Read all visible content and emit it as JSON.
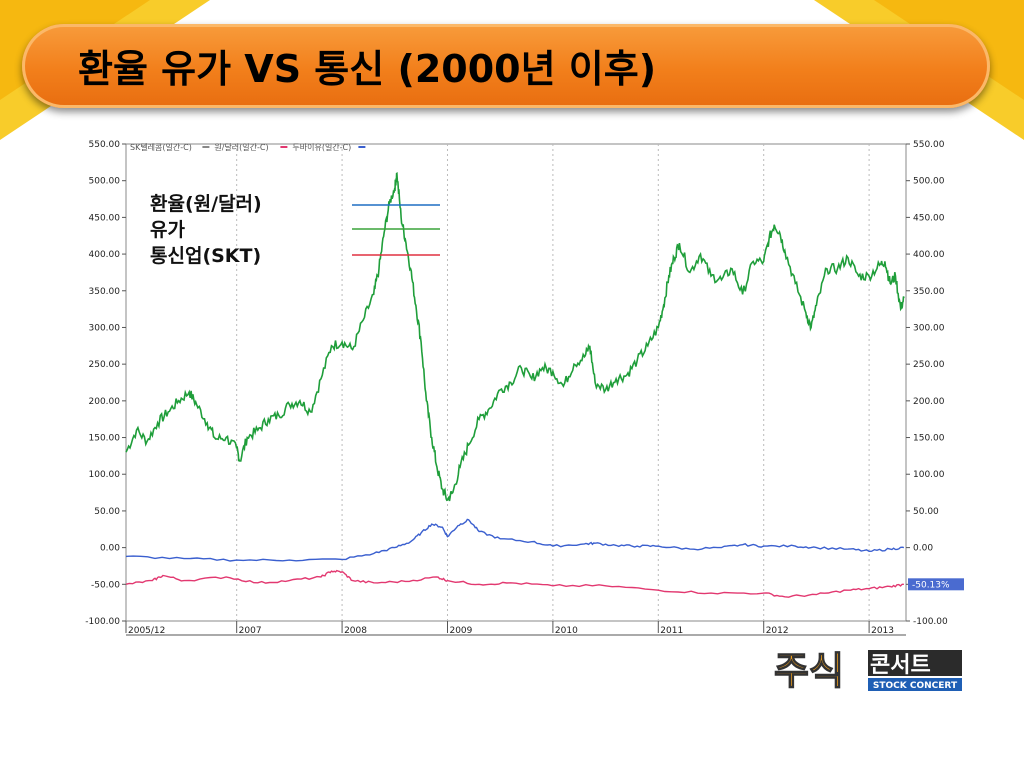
{
  "slide": {
    "title": "환율 유가 VS 통신 (2000년 이후)"
  },
  "chart_data": {
    "type": "line",
    "header_legend": [
      "SK텔레콤(일간-C)",
      "원/달러(일간-C)",
      "두바이유(일간-C)"
    ],
    "legend": [
      {
        "label": "환율(원/달러)",
        "color": "#1f6fc4"
      },
      {
        "label": "유가",
        "color": "#3aa43a"
      },
      {
        "label": "통신업(SKT)",
        "color": "#e03040"
      }
    ],
    "y_ticks": [
      "550.00",
      "500.00",
      "450.00",
      "400.00",
      "350.00",
      "300.00",
      "250.00",
      "200.00",
      "150.00",
      "100.00",
      "50.00",
      "0.00",
      "-50.00",
      "-100.00"
    ],
    "x_ticks": [
      {
        "label": "2005/12",
        "x": 2005.95
      },
      {
        "label": "2007",
        "x": 2007.0
      },
      {
        "label": "2008",
        "x": 2008.0
      },
      {
        "label": "2009",
        "x": 2009.0
      },
      {
        "label": "2010",
        "x": 2010.0
      },
      {
        "label": "2011",
        "x": 2011.0
      },
      {
        "label": "2012",
        "x": 2012.0
      },
      {
        "label": "2013",
        "x": 2013.0
      }
    ],
    "ylim": [
      -100,
      550
    ],
    "xlim": [
      2005.95,
      2013.35
    ],
    "last_value_label": "-50.13%",
    "series": [
      {
        "name": "두바이유(일간-C)",
        "color": "#1f9e3a",
        "points": [
          [
            2005.95,
            130
          ],
          [
            2006.05,
            160
          ],
          [
            2006.15,
            145
          ],
          [
            2006.25,
            170
          ],
          [
            2006.35,
            185
          ],
          [
            2006.45,
            200
          ],
          [
            2006.55,
            212
          ],
          [
            2006.62,
            195
          ],
          [
            2006.72,
            170
          ],
          [
            2006.8,
            148
          ],
          [
            2006.9,
            150
          ],
          [
            2007.0,
            135
          ],
          [
            2007.03,
            118
          ],
          [
            2007.1,
            150
          ],
          [
            2007.2,
            160
          ],
          [
            2007.3,
            175
          ],
          [
            2007.4,
            180
          ],
          [
            2007.5,
            195
          ],
          [
            2007.6,
            200
          ],
          [
            2007.7,
            185
          ],
          [
            2007.8,
            230
          ],
          [
            2007.9,
            275
          ],
          [
            2008.0,
            280
          ],
          [
            2008.1,
            270
          ],
          [
            2008.2,
            310
          ],
          [
            2008.3,
            345
          ],
          [
            2008.35,
            380
          ],
          [
            2008.4,
            430
          ],
          [
            2008.45,
            470
          ],
          [
            2008.5,
            490
          ],
          [
            2008.52,
            510
          ],
          [
            2008.56,
            450
          ],
          [
            2008.6,
            420
          ],
          [
            2008.65,
            380
          ],
          [
            2008.7,
            330
          ],
          [
            2008.75,
            280
          ],
          [
            2008.8,
            200
          ],
          [
            2008.85,
            150
          ],
          [
            2008.9,
            110
          ],
          [
            2008.95,
            80
          ],
          [
            2009.0,
            65
          ],
          [
            2009.05,
            75
          ],
          [
            2009.12,
            110
          ],
          [
            2009.2,
            140
          ],
          [
            2009.3,
            175
          ],
          [
            2009.4,
            190
          ],
          [
            2009.5,
            215
          ],
          [
            2009.6,
            225
          ],
          [
            2009.7,
            245
          ],
          [
            2009.8,
            230
          ],
          [
            2009.9,
            245
          ],
          [
            2010.0,
            240
          ],
          [
            2010.1,
            220
          ],
          [
            2010.2,
            250
          ],
          [
            2010.3,
            260
          ],
          [
            2010.35,
            275
          ],
          [
            2010.4,
            225
          ],
          [
            2010.5,
            215
          ],
          [
            2010.6,
            230
          ],
          [
            2010.7,
            235
          ],
          [
            2010.8,
            255
          ],
          [
            2010.9,
            275
          ],
          [
            2011.0,
            300
          ],
          [
            2011.05,
            330
          ],
          [
            2011.1,
            370
          ],
          [
            2011.15,
            395
          ],
          [
            2011.2,
            415
          ],
          [
            2011.3,
            375
          ],
          [
            2011.4,
            400
          ],
          [
            2011.5,
            370
          ],
          [
            2011.6,
            365
          ],
          [
            2011.7,
            380
          ],
          [
            2011.8,
            345
          ],
          [
            2011.9,
            390
          ],
          [
            2012.0,
            390
          ],
          [
            2012.05,
            420
          ],
          [
            2012.1,
            440
          ],
          [
            2012.15,
            430
          ],
          [
            2012.2,
            405
          ],
          [
            2012.3,
            360
          ],
          [
            2012.4,
            320
          ],
          [
            2012.45,
            300
          ],
          [
            2012.5,
            330
          ],
          [
            2012.6,
            380
          ],
          [
            2012.7,
            380
          ],
          [
            2012.8,
            395
          ],
          [
            2012.9,
            370
          ],
          [
            2013.0,
            370
          ],
          [
            2013.1,
            385
          ],
          [
            2013.15,
            390
          ],
          [
            2013.2,
            360
          ],
          [
            2013.25,
            370
          ],
          [
            2013.3,
            325
          ],
          [
            2013.33,
            340
          ]
        ]
      },
      {
        "name": "원/달러(일간-C)",
        "color": "#3a5fcf",
        "points": [
          [
            2005.95,
            -12
          ],
          [
            2006.5,
            -15
          ],
          [
            2007.0,
            -17
          ],
          [
            2007.5,
            -17
          ],
          [
            2008.0,
            -16
          ],
          [
            2008.3,
            -8
          ],
          [
            2008.5,
            0
          ],
          [
            2008.65,
            8
          ],
          [
            2008.75,
            20
          ],
          [
            2008.85,
            32
          ],
          [
            2008.95,
            28
          ],
          [
            2009.0,
            15
          ],
          [
            2009.1,
            30
          ],
          [
            2009.2,
            38
          ],
          [
            2009.3,
            22
          ],
          [
            2009.5,
            12
          ],
          [
            2009.8,
            8
          ],
          [
            2010.0,
            2
          ],
          [
            2010.3,
            5
          ],
          [
            2010.4,
            6
          ],
          [
            2010.6,
            3
          ],
          [
            2010.8,
            2
          ],
          [
            2011.0,
            2
          ],
          [
            2011.3,
            -2
          ],
          [
            2011.6,
            0
          ],
          [
            2011.8,
            4
          ],
          [
            2012.0,
            2
          ],
          [
            2012.3,
            2
          ],
          [
            2012.5,
            0
          ],
          [
            2012.8,
            -2
          ],
          [
            2013.0,
            -5
          ],
          [
            2013.2,
            -2
          ],
          [
            2013.33,
            0
          ]
        ]
      },
      {
        "name": "원/달러(일간-C)",
        "color": "#e23870",
        "points": [
          [
            2005.95,
            -50
          ],
          [
            2006.2,
            -45
          ],
          [
            2006.3,
            -38
          ],
          [
            2006.5,
            -45
          ],
          [
            2006.9,
            -40
          ],
          [
            2007.2,
            -48
          ],
          [
            2007.5,
            -45
          ],
          [
            2007.8,
            -40
          ],
          [
            2007.9,
            -32
          ],
          [
            2008.0,
            -33
          ],
          [
            2008.1,
            -45
          ],
          [
            2008.3,
            -48
          ],
          [
            2008.6,
            -46
          ],
          [
            2008.9,
            -40
          ],
          [
            2009.0,
            -45
          ],
          [
            2009.3,
            -50
          ],
          [
            2009.6,
            -48
          ],
          [
            2010.0,
            -52
          ],
          [
            2010.5,
            -52
          ],
          [
            2011.0,
            -58
          ],
          [
            2011.5,
            -62
          ],
          [
            2012.0,
            -62
          ],
          [
            2012.2,
            -67
          ],
          [
            2012.5,
            -64
          ],
          [
            2012.8,
            -58
          ],
          [
            2013.0,
            -56
          ],
          [
            2013.2,
            -53
          ],
          [
            2013.33,
            -50
          ]
        ]
      }
    ]
  },
  "logo": {
    "main": "주식",
    "side": "콘서트",
    "caption": "STOCK CONCERT"
  }
}
